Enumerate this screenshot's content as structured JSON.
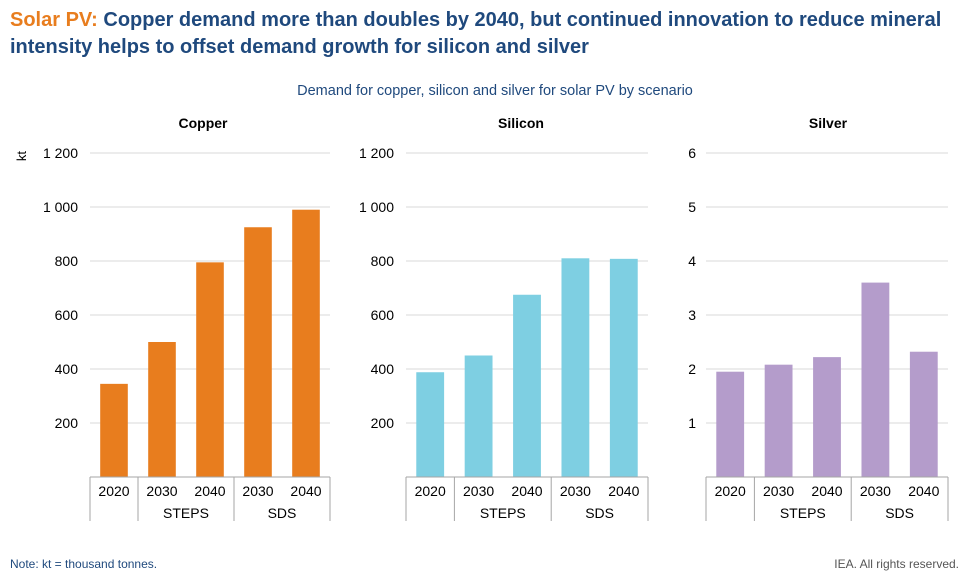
{
  "title": {
    "lead": "Solar PV:",
    "rest": "Copper demand more than doubles by 2040, but continued innovation to reduce mineral intensity helps to offset demand growth for silicon and silver"
  },
  "subtitle": "Demand for copper, silicon and silver for solar PV by scenario",
  "note": "Note: kt = thousand tonnes.",
  "credit": "IEA. All rights reserved.",
  "chart_data": [
    {
      "type": "bar",
      "title": "Copper",
      "ylabel": "kt",
      "categories": [
        "2020",
        "2030",
        "2040",
        "2030",
        "2040"
      ],
      "groups": [
        {
          "label": "",
          "span": 1
        },
        {
          "label": "STEPS",
          "span": 2
        },
        {
          "label": "SDS",
          "span": 2
        }
      ],
      "values": [
        345,
        500,
        795,
        925,
        990
      ],
      "ylim": [
        0,
        1200
      ],
      "yticks": [
        200,
        400,
        600,
        800,
        1000,
        1200
      ],
      "ytick_labels": [
        "200",
        "400",
        "600",
        "800",
        "1 000",
        "1 200"
      ],
      "color": "#e87d1e",
      "grid": true
    },
    {
      "type": "bar",
      "title": "Silicon",
      "ylabel": "",
      "categories": [
        "2020",
        "2030",
        "2040",
        "2030",
        "2040"
      ],
      "groups": [
        {
          "label": "",
          "span": 1
        },
        {
          "label": "STEPS",
          "span": 2
        },
        {
          "label": "SDS",
          "span": 2
        }
      ],
      "values": [
        388,
        450,
        675,
        810,
        808
      ],
      "ylim": [
        0,
        1200
      ],
      "yticks": [
        200,
        400,
        600,
        800,
        1000,
        1200
      ],
      "ytick_labels": [
        "200",
        "400",
        "600",
        "800",
        "1 000",
        "1 200"
      ],
      "color": "#7ecfe2",
      "grid": true
    },
    {
      "type": "bar",
      "title": "Silver",
      "ylabel": "",
      "categories": [
        "2020",
        "2030",
        "2040",
        "2030",
        "2040"
      ],
      "groups": [
        {
          "label": "",
          "span": 1
        },
        {
          "label": "STEPS",
          "span": 2
        },
        {
          "label": "SDS",
          "span": 2
        }
      ],
      "values": [
        1.95,
        2.08,
        2.22,
        3.6,
        2.32
      ],
      "ylim": [
        0,
        6
      ],
      "yticks": [
        1,
        2,
        3,
        4,
        5,
        6
      ],
      "ytick_labels": [
        "1",
        "2",
        "3",
        "4",
        "5",
        "6"
      ],
      "color": "#b49ccb",
      "grid": true
    }
  ]
}
